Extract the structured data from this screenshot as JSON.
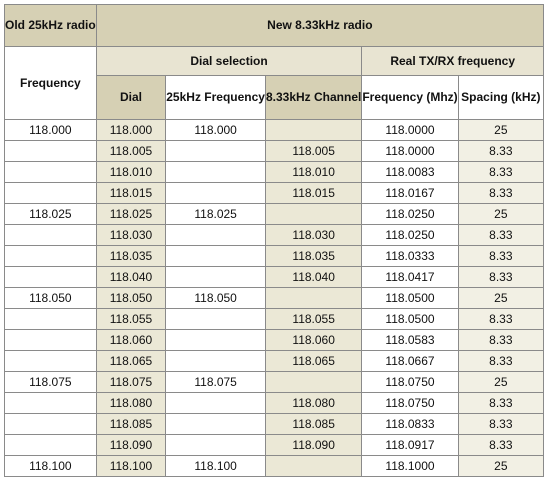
{
  "header": {
    "old_radio": "Old 25kHz\nradio",
    "new_radio": "New 8.33kHz radio",
    "dial_selection": "Dial selection",
    "real_freq": "Real TX/RX frequency",
    "col_frequency": "Frequency",
    "col_dial": "Dial",
    "col_25khz": "25kHz\nFrequency",
    "col_833_channel": "8.33kHz\nChannel",
    "col_freq_mhz": "Frequency\n(Mhz)",
    "col_spacing": "Spacing\n(kHz)"
  },
  "rows": [
    {
      "old": "118.000",
      "dial": "118.000",
      "f25": "118.000",
      "ch833": "",
      "real": "118.0000",
      "spacing": "25"
    },
    {
      "old": "",
      "dial": "118.005",
      "f25": "",
      "ch833": "118.005",
      "real": "118.0000",
      "spacing": "8.33"
    },
    {
      "old": "",
      "dial": "118.010",
      "f25": "",
      "ch833": "118.010",
      "real": "118.0083",
      "spacing": "8.33"
    },
    {
      "old": "",
      "dial": "118.015",
      "f25": "",
      "ch833": "118.015",
      "real": "118.0167",
      "spacing": "8.33"
    },
    {
      "old": "118.025",
      "dial": "118.025",
      "f25": "118.025",
      "ch833": "",
      "real": "118.0250",
      "spacing": "25"
    },
    {
      "old": "",
      "dial": "118.030",
      "f25": "",
      "ch833": "118.030",
      "real": "118.0250",
      "spacing": "8.33"
    },
    {
      "old": "",
      "dial": "118.035",
      "f25": "",
      "ch833": "118.035",
      "real": "118.0333",
      "spacing": "8.33"
    },
    {
      "old": "",
      "dial": "118.040",
      "f25": "",
      "ch833": "118.040",
      "real": "118.0417",
      "spacing": "8.33"
    },
    {
      "old": "118.050",
      "dial": "118.050",
      "f25": "118.050",
      "ch833": "",
      "real": "118.0500",
      "spacing": "25"
    },
    {
      "old": "",
      "dial": "118.055",
      "f25": "",
      "ch833": "118.055",
      "real": "118.0500",
      "spacing": "8.33"
    },
    {
      "old": "",
      "dial": "118.060",
      "f25": "",
      "ch833": "118.060",
      "real": "118.0583",
      "spacing": "8.33"
    },
    {
      "old": "",
      "dial": "118.065",
      "f25": "",
      "ch833": "118.065",
      "real": "118.0667",
      "spacing": "8.33"
    },
    {
      "old": "118.075",
      "dial": "118.075",
      "f25": "118.075",
      "ch833": "",
      "real": "118.0750",
      "spacing": "25"
    },
    {
      "old": "",
      "dial": "118.080",
      "f25": "",
      "ch833": "118.080",
      "real": "118.0750",
      "spacing": "8.33"
    },
    {
      "old": "",
      "dial": "118.085",
      "f25": "",
      "ch833": "118.085",
      "real": "118.0833",
      "spacing": "8.33"
    },
    {
      "old": "",
      "dial": "118.090",
      "f25": "",
      "ch833": "118.090",
      "real": "118.0917",
      "spacing": "8.33"
    },
    {
      "old": "118.100",
      "dial": "118.100",
      "f25": "118.100",
      "ch833": "",
      "real": "118.1000",
      "spacing": "25"
    }
  ]
}
